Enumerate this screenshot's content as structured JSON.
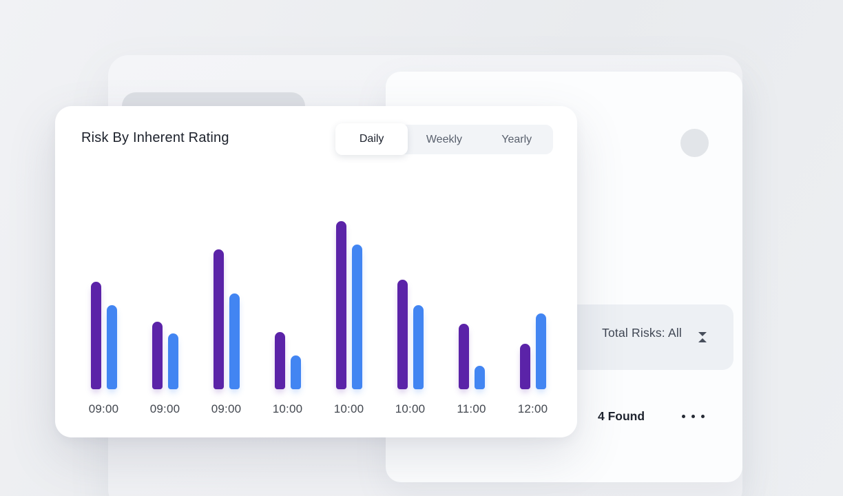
{
  "page": {
    "background_color": "#edeff2"
  },
  "chart_card": {
    "title": "Risk By Inherent Rating",
    "tabs": {
      "items": [
        "Daily",
        "Weekly",
        "Yearly"
      ],
      "active": "Daily"
    }
  },
  "chart_data": {
    "type": "bar",
    "title": "Risk By Inherent Rating",
    "categories": [
      "09:00",
      "09:00",
      "09:00",
      "10:00",
      "10:00",
      "10:00",
      "11:00",
      "12:00"
    ],
    "series": [
      {
        "name": "purple",
        "color": "#5B23A8",
        "values": [
          64,
          40,
          83,
          34,
          100,
          65,
          39,
          27
        ]
      },
      {
        "name": "blue",
        "color": "#4285F2",
        "values": [
          50,
          33,
          57,
          20,
          86,
          50,
          14,
          45
        ]
      }
    ],
    "xlabel": "",
    "ylabel": "",
    "ylim": [
      0,
      100
    ],
    "grid": false,
    "legend": "none"
  },
  "background_panel": {
    "total_risks_label": "Total Risks: All",
    "found_label": "4 Found",
    "icons": {
      "sort": "sort-icon",
      "menu": "ellipsis-icon",
      "avatar": "avatar-circle"
    }
  },
  "colors": {
    "bar_purple": "#5B23A8",
    "bar_blue": "#4285F2",
    "card_white": "#ffffff",
    "band_gray": "#edf0f4",
    "skeleton_gray": "#dcdfe4"
  }
}
